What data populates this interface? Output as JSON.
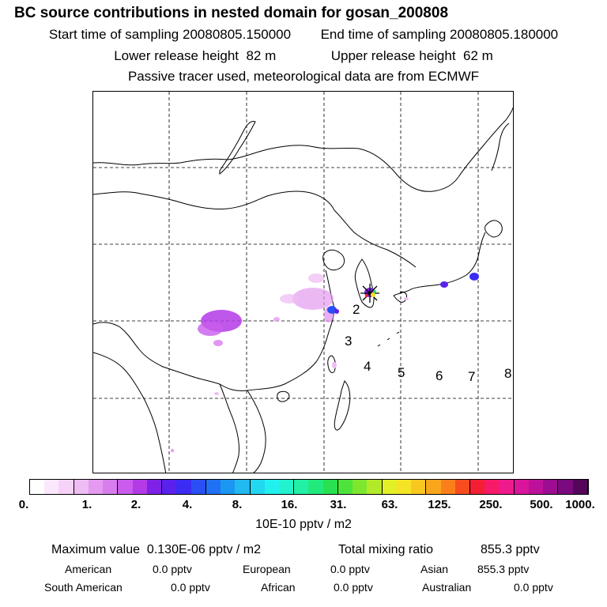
{
  "header": {
    "title": "BC  source contributions in nested domain for gosan_200808",
    "start_label": "Start time of sampling",
    "start_value": "20080805.150000",
    "end_label": "End time of sampling",
    "end_value": "20080805.180000",
    "lower_label": "Lower release height",
    "lower_value": "82 m",
    "upper_label": "Upper release height",
    "upper_value": "62 m",
    "tracer_note": "Passive tracer used, meteorological data are from ECMWF"
  },
  "map": {
    "region_labels": [
      "2",
      "3",
      "4",
      "5",
      "6",
      "7",
      "8"
    ],
    "receptor": "gosan"
  },
  "colorbar": {
    "colors": [
      "#ffffff",
      "#fbe8fc",
      "#f6d2f8",
      "#efbdf3",
      "#e39af0",
      "#d77ded",
      "#c95cec",
      "#b43ae8",
      "#7f21e6",
      "#5b21ec",
      "#3a2cf2",
      "#2a4ff5",
      "#2071f3",
      "#1b96f1",
      "#22b8f0",
      "#22d8f1",
      "#22f0ee",
      "#22f2cd",
      "#21f0a6",
      "#22e97c",
      "#29e150",
      "#4ee33b",
      "#7ee62f",
      "#b2ea2a",
      "#e3ef27",
      "#f5e325",
      "#f8c720",
      "#f9a61c",
      "#fa7f1b",
      "#f74d1f",
      "#f41f35",
      "#f61a69",
      "#ef1a8c",
      "#d8159b",
      "#bd119b",
      "#9c0d92",
      "#7a0a7d",
      "#55065b"
    ],
    "tick_labels": [
      "0.",
      "1.",
      "2.",
      "4.",
      "8.",
      "16.",
      "31.",
      "63.",
      "125.",
      "250.",
      "500.",
      "1000."
    ],
    "units": "10E-10 pptv / m2"
  },
  "stats": {
    "max_label": "Maximum value",
    "max_value": "0.130E-06 pptv / m2",
    "total_label": "Total mixing ratio",
    "total_value": "855.3 pptv",
    "american_label": "American",
    "american_value": "0.0 pptv",
    "european_label": "European",
    "european_value": "0.0 pptv",
    "asian_label": "Asian",
    "asian_value": "855.3 pptv",
    "south_american_label": "South American",
    "south_american_value": "0.0 pptv",
    "african_label": "African",
    "african_value": "0.0 pptv",
    "australian_label": "Australian",
    "australian_value": "0.0 pptv"
  }
}
